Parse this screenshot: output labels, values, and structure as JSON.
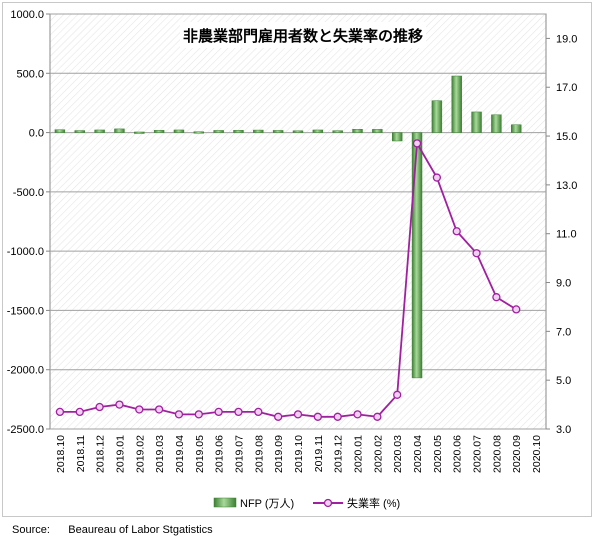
{
  "chart_data": {
    "type": "bar+line",
    "title": "非農業部門雇用者数と失業率の推移",
    "categories": [
      "2018.10",
      "2018.11",
      "2018.12",
      "2019.01",
      "2019.02",
      "2019.03",
      "2019.04",
      "2019.05",
      "2019.06",
      "2019.07",
      "2019.08",
      "2019.09",
      "2019.10",
      "2019.11",
      "2019.12",
      "2020.01",
      "2020.02",
      "2020.03",
      "2020.04",
      "2020.05",
      "2020.06",
      "2020.07",
      "2020.08",
      "2020.09",
      "2020.10"
    ],
    "series": [
      {
        "name": "NFP (万人)",
        "type": "bar",
        "axis": "left",
        "color": "#5aa84a",
        "values": [
          24,
          17,
          22,
          31,
          5,
          19,
          22,
          7,
          18,
          19,
          21,
          18,
          15,
          22,
          16,
          28,
          27,
          -71,
          -2069,
          269,
          477,
          174,
          150,
          66,
          null
        ]
      },
      {
        "name": "失業率 (%)",
        "type": "line",
        "axis": "right",
        "color": "#a020a0",
        "values": [
          3.7,
          3.7,
          3.9,
          4.0,
          3.8,
          3.8,
          3.6,
          3.6,
          3.7,
          3.7,
          3.7,
          3.5,
          3.6,
          3.5,
          3.5,
          3.6,
          3.5,
          4.4,
          14.7,
          13.3,
          11.1,
          10.2,
          8.4,
          7.9,
          null
        ]
      }
    ],
    "y_left": {
      "range": [
        -2500,
        1000
      ],
      "ticks": [
        "1000.0",
        "500.0",
        "0.0",
        "-500.0",
        "-1000.0",
        "-1500.0",
        "-2000.0",
        "-2500.0"
      ]
    },
    "y_right": {
      "range": [
        3,
        20
      ],
      "ticks": [
        "19.0",
        "17.0",
        "15.0",
        "13.0",
        "11.0",
        "9.0",
        "7.0",
        "5.0",
        "3.0"
      ]
    },
    "grid": true,
    "legend_placement": "bottom"
  },
  "source_label": "Source:",
  "source_text": "Beaureau of Labor Stgatistics"
}
